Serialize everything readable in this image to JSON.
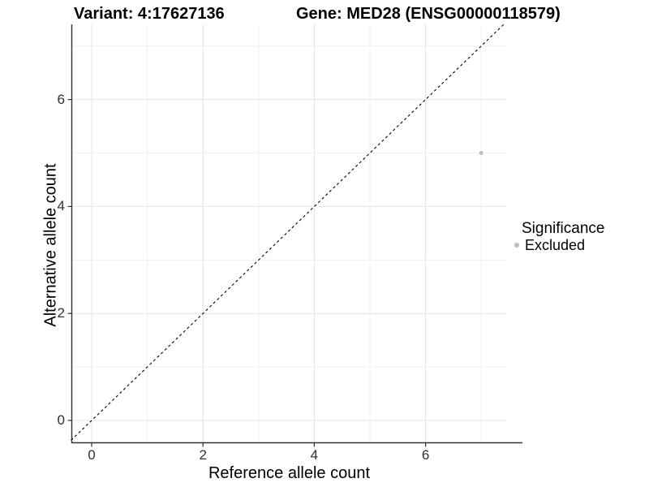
{
  "titles": {
    "left": "Variant: 4:17627136",
    "right": "Gene: MED28 (ENSG00000118579)"
  },
  "chart_data": {
    "type": "scatter",
    "title": "Variant: 4:17627136   |   Gene: MED28 (ENSG00000118579)",
    "xlabel": "Reference allele count",
    "ylabel": "Alternative allele count",
    "xlim": [
      -0.37,
      7.46
    ],
    "ylim": [
      -0.41,
      7.41
    ],
    "x_ticks": [
      0,
      2,
      4,
      6
    ],
    "y_ticks": [
      0,
      2,
      4,
      6
    ],
    "x_minor_gridlines": [
      1,
      3,
      5,
      7
    ],
    "y_minor_gridlines": [
      1,
      3,
      5,
      7
    ],
    "grid": "major and minor, light gray, on white background",
    "legend_position": "right",
    "series": [
      {
        "name": "Excluded",
        "color": "#bebebe",
        "points": [
          {
            "x": 7,
            "y": 5
          }
        ]
      }
    ],
    "reference_line": {
      "kind": "abline",
      "slope": 1,
      "intercept": 0,
      "linetype": "dashed",
      "color": "#000000"
    }
  },
  "legend": {
    "title": "Significance",
    "items": [
      {
        "label": "Excluded",
        "color": "#bebebe"
      }
    ]
  },
  "colors": {
    "background": "#ffffff",
    "grid_major": "#e4e4e4",
    "grid_minor": "#f0f0f0",
    "axis_line": "#333333",
    "tick_mark": "#333333",
    "tick_text": "#303030",
    "point": "#bebebe"
  }
}
